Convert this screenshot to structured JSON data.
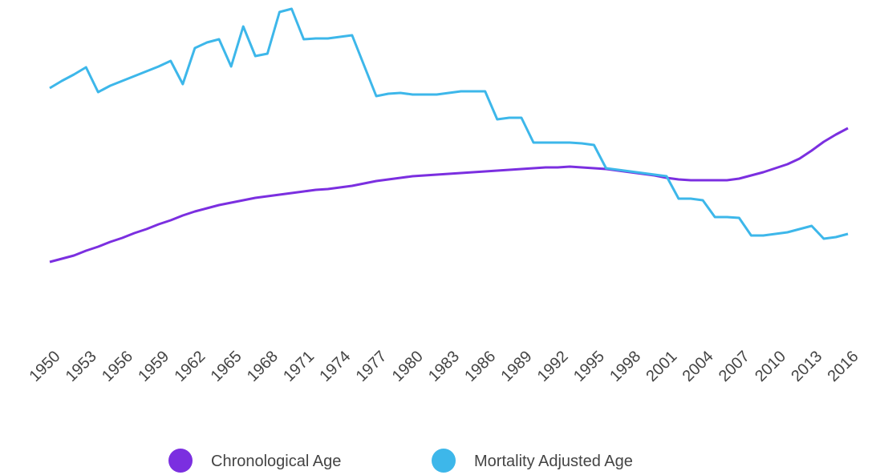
{
  "chart_data": {
    "type": "line",
    "x": [
      1950,
      1951,
      1952,
      1953,
      1954,
      1955,
      1956,
      1957,
      1958,
      1959,
      1960,
      1961,
      1962,
      1963,
      1964,
      1965,
      1966,
      1967,
      1968,
      1969,
      1970,
      1971,
      1972,
      1973,
      1974,
      1975,
      1976,
      1977,
      1978,
      1979,
      1980,
      1981,
      1982,
      1983,
      1984,
      1985,
      1986,
      1987,
      1988,
      1989,
      1990,
      1991,
      1992,
      1993,
      1994,
      1995,
      1996,
      1997,
      1998,
      1999,
      2000,
      2001,
      2002,
      2003,
      2004,
      2005,
      2006,
      2007,
      2008,
      2009,
      2010,
      2011,
      2012,
      2013,
      2014,
      2015,
      2016
    ],
    "series": [
      {
        "name": "Chronological Age",
        "color": "#7b2fe0",
        "values": [
          27.3,
          27.7,
          28.1,
          28.7,
          29.2,
          29.8,
          30.3,
          30.9,
          31.4,
          32,
          32.5,
          33.1,
          33.6,
          34,
          34.4,
          34.7,
          35,
          35.3,
          35.5,
          35.7,
          35.9,
          36.1,
          36.3,
          36.4,
          36.6,
          36.8,
          37.1,
          37.4,
          37.6,
          37.8,
          38,
          38.1,
          38.2,
          38.3,
          38.4,
          38.5,
          38.6,
          38.7,
          38.8,
          38.9,
          39,
          39.1,
          39.1,
          39.2,
          39.1,
          39,
          38.9,
          38.7,
          38.5,
          38.3,
          38.1,
          37.8,
          37.6,
          37.5,
          37.5,
          37.5,
          37.5,
          37.7,
          38.1,
          38.5,
          39,
          39.5,
          40.2,
          41.2,
          42.3,
          43.2,
          44
        ]
      },
      {
        "name": "Mortality Adjusted Age",
        "color": "#3db7ea",
        "values": [
          49,
          49.9,
          50.7,
          51.6,
          48.5,
          49.3,
          49.9,
          50.5,
          51.1,
          51.7,
          52.4,
          49.5,
          54,
          54.7,
          55.1,
          51.7,
          56.7,
          53,
          53.3,
          58.5,
          58.9,
          55.1,
          55.2,
          55.2,
          55.4,
          55.6,
          51.8,
          48,
          48.3,
          48.4,
          48.2,
          48.2,
          48.2,
          48.4,
          48.6,
          48.6,
          48.6,
          45.1,
          45.3,
          45.3,
          42.2,
          42.2,
          42.2,
          42.2,
          42.1,
          41.9,
          39,
          38.8,
          38.6,
          38.4,
          38.2,
          38,
          35.2,
          35.2,
          35,
          32.9,
          32.9,
          32.8,
          30.6,
          30.6,
          30.8,
          31,
          31.4,
          31.8,
          30.2,
          30.4,
          30.8
        ]
      }
    ],
    "xlim": [
      1950,
      2016
    ],
    "xticks": [
      1950,
      1953,
      1956,
      1959,
      1962,
      1965,
      1968,
      1971,
      1974,
      1977,
      1980,
      1983,
      1986,
      1989,
      1992,
      1995,
      1998,
      2001,
      2004,
      2007,
      2010,
      2013,
      2016
    ],
    "ylim": [
      20,
      60
    ],
    "legend": "bottom"
  }
}
